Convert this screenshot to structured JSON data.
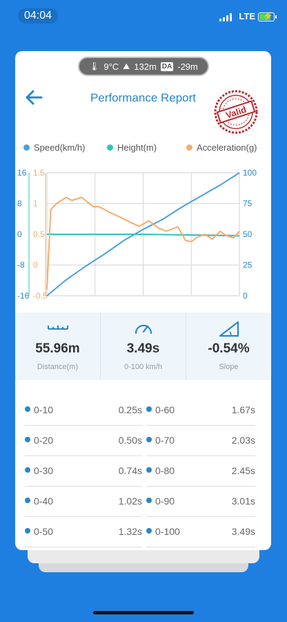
{
  "status_bar": {
    "time": "04:04",
    "network": "LTE"
  },
  "conditions": {
    "temperature": "9°C",
    "altitude": "132m",
    "da_badge": "DA",
    "density_altitude": "-29m"
  },
  "header": {
    "title": "Performance Report",
    "stamp_text": "Valid"
  },
  "chart_data": {
    "type": "line",
    "legend": [
      "Speed(km/h)",
      "Height(m)",
      "Acceleration(g)"
    ],
    "left_axis_height": {
      "ticks": [
        "16",
        "8",
        "0",
        "-8",
        "-16"
      ],
      "range": [
        -16,
        16
      ]
    },
    "left_axis_accel": {
      "ticks": [
        "1.5",
        "1",
        "0.5",
        "0",
        "-0.5"
      ],
      "range": [
        -0.5,
        1.5
      ]
    },
    "right_axis_speed": {
      "ticks": [
        "100",
        "75",
        "50",
        "25",
        "0"
      ],
      "range": [
        0,
        100
      ]
    },
    "grid": true,
    "series": [
      {
        "name": "Speed(km/h)",
        "color": "#4a9fe0",
        "axis": "speed",
        "t": [
          0,
          0.1,
          0.2,
          0.3,
          0.4,
          0.5,
          0.6,
          0.7,
          0.8,
          0.9,
          1.0
        ],
        "values": [
          0,
          13,
          24,
          34,
          45,
          54,
          62,
          72,
          81,
          90,
          100
        ]
      },
      {
        "name": "Height(m)",
        "color": "#2cc4c0",
        "axis": "height",
        "t": [
          0,
          0.5,
          1.0
        ],
        "values": [
          0,
          0,
          -0.4
        ]
      },
      {
        "name": "Acceleration(g)",
        "color": "#f4ad6a",
        "axis": "accel",
        "t": [
          0,
          0.02,
          0.05,
          0.1,
          0.13,
          0.18,
          0.2,
          0.24,
          0.27,
          0.33,
          0.38,
          0.43,
          0.48,
          0.53,
          0.58,
          0.62,
          0.68,
          0.72,
          0.75,
          0.78,
          0.82,
          0.86,
          0.9,
          0.93,
          0.97,
          1.0
        ],
        "values": [
          -0.4,
          0.9,
          1.0,
          1.1,
          1.05,
          1.1,
          1.05,
          0.95,
          0.95,
          0.85,
          0.78,
          0.7,
          0.63,
          0.72,
          0.6,
          0.55,
          0.62,
          0.4,
          0.38,
          0.45,
          0.5,
          0.42,
          0.55,
          0.48,
          0.44,
          0.55
        ]
      }
    ]
  },
  "stats": [
    {
      "value": "55.96m",
      "label": "Distance(m)",
      "icon": "ruler-icon"
    },
    {
      "value": "3.49s",
      "label": "0-100 km/h",
      "icon": "speedometer-icon"
    },
    {
      "value": "-0.54%",
      "label": "Slope",
      "icon": "slope-icon"
    }
  ],
  "splits": [
    {
      "left_range": "0-10",
      "left_time": "0.25s",
      "right_range": "0-60",
      "right_time": "1.67s"
    },
    {
      "left_range": "0-20",
      "left_time": "0.50s",
      "right_range": "0-70",
      "right_time": "2.03s"
    },
    {
      "left_range": "0-30",
      "left_time": "0.74s",
      "right_range": "0-80",
      "right_time": "2.45s"
    },
    {
      "left_range": "0-40",
      "left_time": "1.02s",
      "right_range": "0-90",
      "right_time": "3.01s"
    },
    {
      "left_range": "0-50",
      "left_time": "1.32s",
      "right_range": "0-100",
      "right_time": "3.49s"
    }
  ],
  "colors": {
    "accent": "#2a86c8",
    "background": "#1f7fe0",
    "stamp": "#c0282c"
  }
}
